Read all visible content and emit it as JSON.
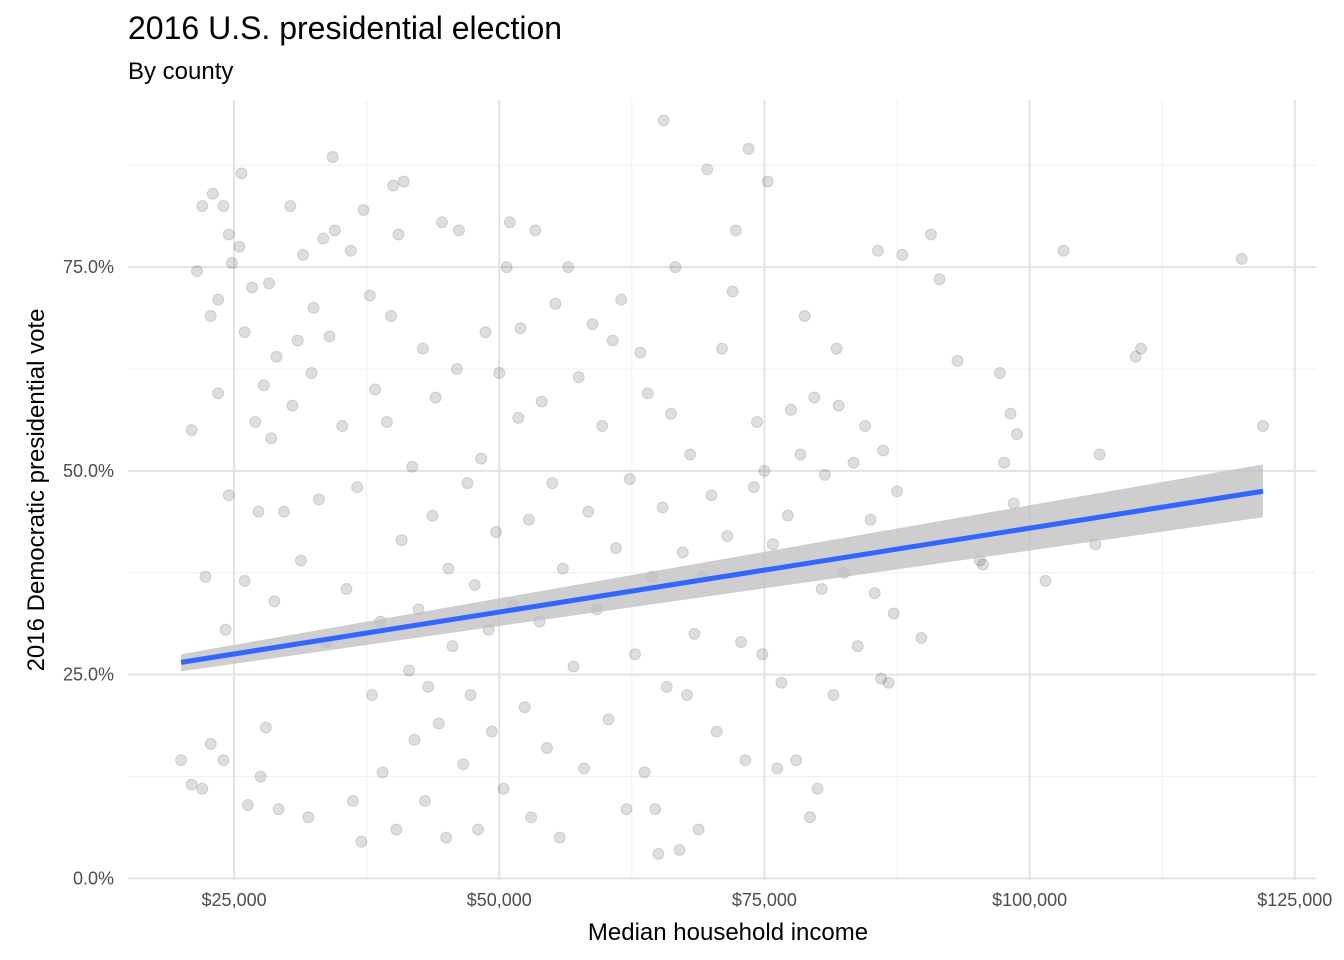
{
  "chart_data": {
    "type": "scatter",
    "title": "2016 U.S. presidential election",
    "subtitle": "By county",
    "xlabel": "Median household income",
    "ylabel": "2016 Democratic presidential vote",
    "xlim": [
      15000,
      127000
    ],
    "ylim": [
      -0.2,
      95.5
    ],
    "x_ticks": [
      {
        "value": 25000,
        "label": "$25,000"
      },
      {
        "value": 50000,
        "label": "$50,000"
      },
      {
        "value": 75000,
        "label": "$75,000"
      },
      {
        "value": 100000,
        "label": "$100,000"
      },
      {
        "value": 125000,
        "label": "$125,000"
      }
    ],
    "y_ticks": [
      {
        "value": 0,
        "label": "0.0%"
      },
      {
        "value": 25,
        "label": "25.0%"
      },
      {
        "value": 50,
        "label": "50.0%"
      },
      {
        "value": 75,
        "label": "75.0%"
      }
    ],
    "grid": true,
    "point_color": "#000000",
    "point_opacity": 0.13,
    "fit_line": {
      "method": "linear",
      "color": "#3366ff",
      "ribbon_color": "#bdbdbd",
      "x": [
        20000,
        122000
      ],
      "y": [
        26.5,
        47.5
      ],
      "ci_lower": [
        25.4,
        44.3
      ],
      "ci_upper": [
        27.5,
        50.8
      ]
    },
    "points": [
      [
        20000,
        14.5
      ],
      [
        21000,
        11.5
      ],
      [
        21000,
        55.0
      ],
      [
        21500,
        74.5
      ],
      [
        22000,
        11.0
      ],
      [
        22000,
        82.5
      ],
      [
        22300,
        37.0
      ],
      [
        22800,
        69.0
      ],
      [
        22800,
        16.5
      ],
      [
        23000,
        84.0
      ],
      [
        23500,
        59.5
      ],
      [
        23500,
        71.0
      ],
      [
        24000,
        14.5
      ],
      [
        24000,
        82.5
      ],
      [
        24200,
        30.5
      ],
      [
        24500,
        79.0
      ],
      [
        24500,
        47.0
      ],
      [
        24800,
        75.5
      ],
      [
        25500,
        77.5
      ],
      [
        25700,
        86.5
      ],
      [
        26000,
        67.0
      ],
      [
        26000,
        36.5
      ],
      [
        26300,
        9.0
      ],
      [
        26700,
        72.5
      ],
      [
        27000,
        56.0
      ],
      [
        27300,
        45.0
      ],
      [
        27500,
        12.5
      ],
      [
        27800,
        60.5
      ],
      [
        28000,
        18.5
      ],
      [
        28300,
        73.0
      ],
      [
        28500,
        54.0
      ],
      [
        28800,
        34.0
      ],
      [
        29000,
        64.0
      ],
      [
        29200,
        8.5
      ],
      [
        29700,
        45.0
      ],
      [
        30300,
        82.5
      ],
      [
        30500,
        58.0
      ],
      [
        31000,
        66.0
      ],
      [
        31300,
        39.0
      ],
      [
        31500,
        76.5
      ],
      [
        32000,
        7.5
      ],
      [
        32300,
        62.0
      ],
      [
        32500,
        70.0
      ],
      [
        33000,
        46.5
      ],
      [
        33400,
        78.5
      ],
      [
        33700,
        29.0
      ],
      [
        34000,
        66.5
      ],
      [
        34300,
        88.5
      ],
      [
        34500,
        79.5
      ],
      [
        35200,
        55.5
      ],
      [
        35600,
        35.5
      ],
      [
        36000,
        77.0
      ],
      [
        36200,
        9.5
      ],
      [
        36600,
        48.0
      ],
      [
        37000,
        4.5
      ],
      [
        37200,
        82.0
      ],
      [
        37800,
        71.5
      ],
      [
        38000,
        22.5
      ],
      [
        38300,
        60.0
      ],
      [
        38800,
        31.5
      ],
      [
        39000,
        13.0
      ],
      [
        39400,
        56.0
      ],
      [
        39800,
        69.0
      ],
      [
        40000,
        85.0
      ],
      [
        40300,
        6.0
      ],
      [
        40500,
        79.0
      ],
      [
        40800,
        41.5
      ],
      [
        41000,
        85.5
      ],
      [
        41500,
        25.5
      ],
      [
        41800,
        50.5
      ],
      [
        42000,
        17.0
      ],
      [
        42400,
        33.0
      ],
      [
        42800,
        65.0
      ],
      [
        43000,
        9.5
      ],
      [
        43300,
        23.5
      ],
      [
        43700,
        44.5
      ],
      [
        44000,
        59.0
      ],
      [
        44300,
        19.0
      ],
      [
        44600,
        80.5
      ],
      [
        45000,
        5.0
      ],
      [
        45200,
        38.0
      ],
      [
        45600,
        28.5
      ],
      [
        46000,
        62.5
      ],
      [
        46200,
        79.5
      ],
      [
        46600,
        14.0
      ],
      [
        47000,
        48.5
      ],
      [
        47300,
        22.5
      ],
      [
        47700,
        36.0
      ],
      [
        48000,
        6.0
      ],
      [
        48300,
        51.5
      ],
      [
        48700,
        67.0
      ],
      [
        49000,
        30.5
      ],
      [
        49300,
        18.0
      ],
      [
        49700,
        42.5
      ],
      [
        50000,
        62.0
      ],
      [
        50400,
        11.0
      ],
      [
        50700,
        75.0
      ],
      [
        51000,
        80.5
      ],
      [
        51300,
        33.5
      ],
      [
        51800,
        56.5
      ],
      [
        52000,
        67.5
      ],
      [
        52400,
        21.0
      ],
      [
        52800,
        44.0
      ],
      [
        53000,
        7.5
      ],
      [
        53400,
        79.5
      ],
      [
        53800,
        31.5
      ],
      [
        54000,
        58.5
      ],
      [
        54500,
        16.0
      ],
      [
        55000,
        48.5
      ],
      [
        55300,
        70.5
      ],
      [
        55700,
        5.0
      ],
      [
        56000,
        38.0
      ],
      [
        56500,
        75.0
      ],
      [
        57000,
        26.0
      ],
      [
        57500,
        61.5
      ],
      [
        58000,
        13.5
      ],
      [
        58400,
        45.0
      ],
      [
        58800,
        68.0
      ],
      [
        59200,
        33.0
      ],
      [
        59700,
        55.5
      ],
      [
        60300,
        19.5
      ],
      [
        60700,
        66.0
      ],
      [
        61000,
        40.5
      ],
      [
        61500,
        71.0
      ],
      [
        62000,
        8.5
      ],
      [
        62300,
        49.0
      ],
      [
        62800,
        27.5
      ],
      [
        63300,
        64.5
      ],
      [
        63700,
        13.0
      ],
      [
        64000,
        59.5
      ],
      [
        64400,
        37.0
      ],
      [
        64700,
        8.5
      ],
      [
        65000,
        3.0
      ],
      [
        65400,
        45.5
      ],
      [
        65500,
        93.0
      ],
      [
        65800,
        23.5
      ],
      [
        66200,
        57.0
      ],
      [
        66600,
        75.0
      ],
      [
        67000,
        3.5
      ],
      [
        67300,
        40.0
      ],
      [
        67700,
        22.5
      ],
      [
        68000,
        52.0
      ],
      [
        68400,
        30.0
      ],
      [
        68800,
        6.0
      ],
      [
        69200,
        37.0
      ],
      [
        69600,
        87.0
      ],
      [
        70000,
        47.0
      ],
      [
        70500,
        18.0
      ],
      [
        71000,
        65.0
      ],
      [
        71500,
        42.0
      ],
      [
        72000,
        72.0
      ],
      [
        72300,
        79.5
      ],
      [
        72800,
        29.0
      ],
      [
        73200,
        14.5
      ],
      [
        73500,
        89.5
      ],
      [
        74000,
        48.0
      ],
      [
        74300,
        56.0
      ],
      [
        74800,
        27.5
      ],
      [
        75000,
        50.0
      ],
      [
        75300,
        85.5
      ],
      [
        75800,
        41.0
      ],
      [
        76200,
        13.5
      ],
      [
        76600,
        24.0
      ],
      [
        77200,
        44.5
      ],
      [
        77500,
        57.5
      ],
      [
        78000,
        14.5
      ],
      [
        78400,
        52.0
      ],
      [
        78800,
        69.0
      ],
      [
        79300,
        7.5
      ],
      [
        79700,
        59.0
      ],
      [
        80000,
        11.0
      ],
      [
        80400,
        35.5
      ],
      [
        80700,
        49.5
      ],
      [
        81500,
        22.5
      ],
      [
        81800,
        65.0
      ],
      [
        82000,
        58.0
      ],
      [
        82500,
        37.5
      ],
      [
        83400,
        51.0
      ],
      [
        83800,
        28.5
      ],
      [
        84500,
        55.5
      ],
      [
        85000,
        44.0
      ],
      [
        85400,
        35.0
      ],
      [
        85700,
        77.0
      ],
      [
        86000,
        24.5
      ],
      [
        86200,
        52.5
      ],
      [
        86700,
        24.0
      ],
      [
        87200,
        32.5
      ],
      [
        87500,
        47.5
      ],
      [
        88000,
        76.5
      ],
      [
        89800,
        29.5
      ],
      [
        90700,
        79.0
      ],
      [
        91500,
        73.5
      ],
      [
        93200,
        63.5
      ],
      [
        95300,
        39.0
      ],
      [
        95600,
        38.5
      ],
      [
        97200,
        62.0
      ],
      [
        97600,
        51.0
      ],
      [
        98200,
        57.0
      ],
      [
        98500,
        46.0
      ],
      [
        98800,
        54.5
      ],
      [
        101500,
        36.5
      ],
      [
        103200,
        77.0
      ],
      [
        106200,
        41.0
      ],
      [
        106600,
        52.0
      ],
      [
        110000,
        64.0
      ],
      [
        110500,
        65.0
      ],
      [
        120000,
        76.0
      ],
      [
        122000,
        55.5
      ]
    ]
  }
}
